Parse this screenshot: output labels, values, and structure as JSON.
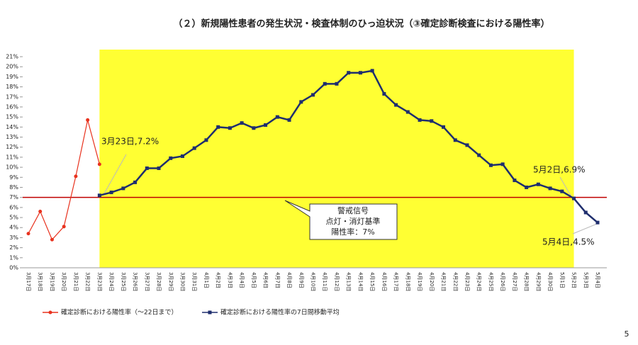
{
  "chart_data": {
    "type": "line",
    "title": "（２）新規陽性患者の発生状況・検査体制のひっ迫状況（③確定診断検査における陽性率）",
    "page_number": "5",
    "categories": [
      "3月17日",
      "3月18日",
      "3月19日",
      "3月20日",
      "3月21日",
      "3月22日",
      "3月23日",
      "3月24日",
      "3月25日",
      "3月26日",
      "3月27日",
      "3月28日",
      "3月29日",
      "3月30日",
      "3月31日",
      "4月1日",
      "4月2日",
      "4月3日",
      "4月4日",
      "4月5日",
      "4月6日",
      "4月7日",
      "4月8日",
      "4月9日",
      "4月10日",
      "4月11日",
      "4月12日",
      "4月13日",
      "4月14日",
      "4月15日",
      "4月16日",
      "4月17日",
      "4月18日",
      "4月19日",
      "4月20日",
      "4月21日",
      "4月22日",
      "4月23日",
      "4月24日",
      "4月25日",
      "4月26日",
      "4月27日",
      "4月28日",
      "4月29日",
      "4月30日",
      "5月1日",
      "5月2日",
      "5月3日",
      "5月4日"
    ],
    "series": [
      {
        "name": "確定診断における陽性率（～22日まで）",
        "color": "#e8321e",
        "values": [
          3.4,
          5.6,
          2.8,
          4.1,
          9.1,
          14.7,
          10.3,
          null,
          null,
          null,
          null,
          null,
          null,
          null,
          null,
          null,
          null,
          null,
          null,
          null,
          null,
          null,
          null,
          null,
          null,
          null,
          null,
          null,
          null,
          null,
          null,
          null,
          null,
          null,
          null,
          null,
          null,
          null,
          null,
          null,
          null,
          null,
          null,
          null,
          null,
          null,
          null,
          null,
          null
        ]
      },
      {
        "name": "確定診断における陽性率の7日間移動平均",
        "color": "#1f2e6e",
        "values": [
          null,
          null,
          null,
          null,
          null,
          null,
          7.2,
          7.5,
          7.9,
          8.5,
          9.9,
          9.9,
          10.9,
          11.1,
          11.9,
          12.7,
          14.0,
          13.9,
          14.4,
          13.9,
          14.2,
          15.0,
          14.7,
          16.5,
          17.2,
          18.3,
          18.3,
          19.4,
          19.4,
          19.6,
          17.3,
          16.2,
          15.5,
          14.7,
          14.6,
          14.0,
          12.7,
          12.2,
          11.2,
          10.2,
          10.3,
          8.7,
          8.0,
          8.3,
          7.9,
          7.6,
          6.9,
          5.5,
          4.5
        ]
      }
    ],
    "ylim": [
      0,
      21
    ],
    "yticks": [
      {
        "value": 0,
        "label": "0%"
      },
      {
        "value": 1,
        "label": "1%"
      },
      {
        "value": 2,
        "label": "2%"
      },
      {
        "value": 3,
        "label": "3%"
      },
      {
        "value": 4,
        "label": "4%"
      },
      {
        "value": 5,
        "label": "5%"
      },
      {
        "value": 6,
        "label": "6%"
      },
      {
        "value": 7,
        "label": "7%"
      },
      {
        "value": 8,
        "label": "8%"
      },
      {
        "value": 9,
        "label": "9%"
      },
      {
        "value": 10,
        "label": "10%"
      },
      {
        "value": 11,
        "label": "11%"
      },
      {
        "value": 12,
        "label": "12%"
      },
      {
        "value": 13,
        "label": "13%"
      },
      {
        "value": 14,
        "label": "14%"
      },
      {
        "value": 15,
        "label": "15%"
      },
      {
        "value": 16,
        "label": "16%"
      },
      {
        "value": 17,
        "label": "17%"
      },
      {
        "value": 18,
        "label": "18%"
      },
      {
        "value": 19,
        "label": "19%"
      },
      {
        "value": 20,
        "label": "20%"
      },
      {
        "value": 21,
        "label": "21%"
      }
    ],
    "threshold": {
      "value": 7,
      "color": "#c00000"
    },
    "highlight": {
      "range": [
        "3月23日",
        "5月2日"
      ],
      "color": "#ffff33"
    },
    "annotations": [
      "3月23日,7.2%",
      "5月2日,6.9%",
      "5月4日,4.5%"
    ],
    "callout": [
      "警戒信号",
      "点灯・消灯基準",
      "陽性率：7%"
    ]
  }
}
